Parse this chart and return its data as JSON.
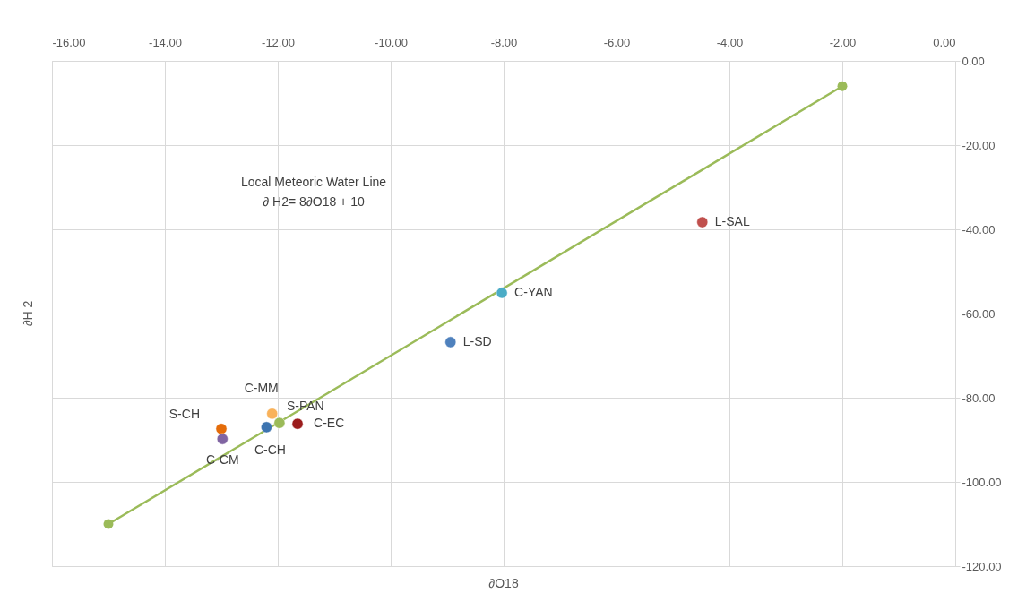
{
  "chart_data": {
    "type": "scatter",
    "xlabel": "∂O18",
    "ylabel": "∂H 2",
    "annotations": [
      "Local Meteoric Water Line",
      "∂ H2= 8∂O18 + 10"
    ],
    "xlim": [
      -16,
      0
    ],
    "ylim": [
      -120,
      0
    ],
    "xticks": [
      {
        "value": -16,
        "label": "-16.00"
      },
      {
        "value": -14,
        "label": "-14.00"
      },
      {
        "value": -12,
        "label": "-12.00"
      },
      {
        "value": -10,
        "label": "-10.00"
      },
      {
        "value": -8,
        "label": "-8.00"
      },
      {
        "value": -6,
        "label": "-6.00"
      },
      {
        "value": -4,
        "label": "-4.00"
      },
      {
        "value": -2,
        "label": "-2.00"
      },
      {
        "value": 0,
        "label": "0.00"
      }
    ],
    "yticks": [
      {
        "value": 0,
        "label": "0.00"
      },
      {
        "value": -20,
        "label": "-20.00"
      },
      {
        "value": -40,
        "label": "-40.00"
      },
      {
        "value": -60,
        "label": "-60.00"
      },
      {
        "value": -80,
        "label": "-80.00"
      },
      {
        "value": -100,
        "label": "-100.00"
      },
      {
        "value": -120,
        "label": "-120.00"
      }
    ],
    "grid": true,
    "marker": "circle",
    "series": [
      {
        "type": "line",
        "color": "#9bbb59",
        "x": [
          -15,
          -2
        ],
        "values": [
          -110,
          -6
        ],
        "line_style": "solid"
      },
      {
        "name": "L-SAL",
        "color": "#c0504d",
        "x": [
          -4.48
        ],
        "values": [
          -38.3
        ]
      },
      {
        "name": "C-YAN",
        "color": "#4bacc6",
        "x": [
          -8.03
        ],
        "values": [
          -55.1
        ]
      },
      {
        "name": "L-SD",
        "color": "#4f81bd",
        "x": [
          -8.94
        ],
        "values": [
          -66.8
        ]
      },
      {
        "name": "S-CH",
        "color": "#e46c0a",
        "x": [
          -13.0
        ],
        "values": [
          -87.4
        ]
      },
      {
        "name": "C-CM",
        "color": "#8064a2",
        "x": [
          -12.98
        ],
        "values": [
          -89.8
        ]
      },
      {
        "name": "C-MM",
        "color": "#f9b25a",
        "x": [
          -12.1
        ],
        "values": [
          -83.8
        ]
      },
      {
        "name": "C-CH",
        "color": "#3d74b0",
        "x": [
          -12.2
        ],
        "values": [
          -87.0
        ]
      },
      {
        "name": "S-PAN",
        "color": "#9bbb59",
        "x": [
          -11.97
        ],
        "values": [
          -86.0
        ]
      },
      {
        "name": "C-EC",
        "color": "#9b1c1c",
        "x": [
          -11.65
        ],
        "values": [
          -86.2
        ]
      }
    ]
  }
}
